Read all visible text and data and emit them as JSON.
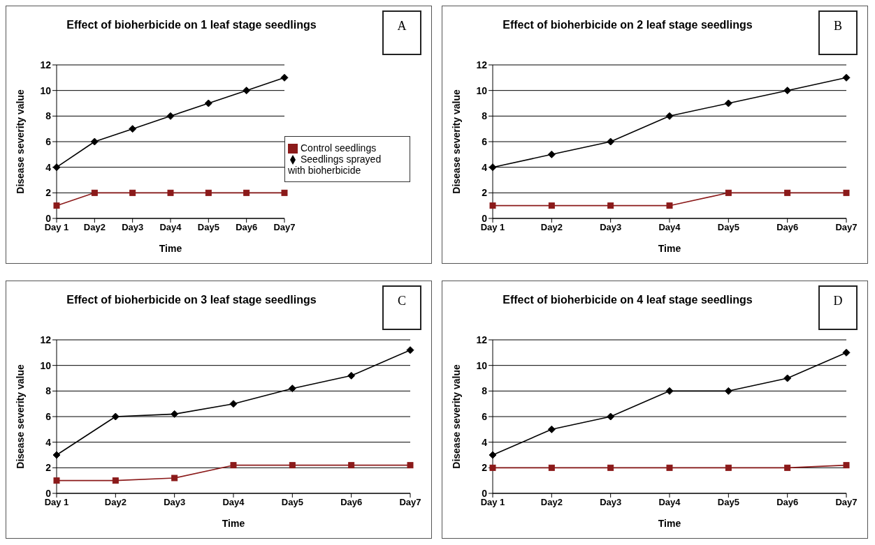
{
  "chart_data": [
    {
      "type": "line",
      "title": "Effect of bioherbicide on 1 leaf stage seedlings",
      "annotations": [
        "A"
      ],
      "xlabel": "Time",
      "ylabel": "Disease severity value",
      "categories": [
        "Day 1",
        "Day2",
        "Day3",
        "Day4",
        "Day5",
        "Day6",
        "Day7"
      ],
      "series": [
        {
          "name": "Seedlings sprayed with bioherbicide",
          "color": "#000000",
          "marker": "diamond",
          "values": [
            4,
            6,
            7,
            8,
            9,
            10,
            11
          ]
        },
        {
          "name": "Control seedlings",
          "color": "#8b1a1a",
          "marker": "square",
          "values": [
            1,
            2,
            2,
            2,
            2,
            2,
            2
          ]
        }
      ],
      "ylim": [
        0,
        12
      ],
      "yticks": [
        0,
        2,
        4,
        6,
        8,
        10,
        12
      ],
      "grid": "y",
      "legend": "right"
    },
    {
      "type": "line",
      "title": "Effect of bioherbicide on 2 leaf stage seedlings",
      "annotations": [
        "B"
      ],
      "xlabel": "Time",
      "ylabel": "Disease severity value",
      "categories": [
        "Day 1",
        "Day2",
        "Day3",
        "Day4",
        "Day5",
        "Day6",
        "Day7"
      ],
      "series": [
        {
          "color": "#000000",
          "marker": "diamond",
          "values": [
            4,
            5,
            6,
            8,
            9,
            10,
            11
          ]
        },
        {
          "color": "#8b1a1a",
          "marker": "square",
          "values": [
            1,
            1,
            1,
            1,
            2,
            2,
            2
          ]
        }
      ],
      "ylim": [
        0,
        12
      ],
      "yticks": [
        0,
        2,
        4,
        6,
        8,
        10,
        12
      ],
      "grid": "y"
    },
    {
      "type": "line",
      "title": "Effect of bioherbicide on 3 leaf stage seedlings",
      "annotations": [
        "C"
      ],
      "xlabel": "Time",
      "ylabel": "Disease severity value",
      "categories": [
        "Day 1",
        "Day2",
        "Day3",
        "Day4",
        "Day5",
        "Day6",
        "Day7"
      ],
      "series": [
        {
          "color": "#000000",
          "marker": "diamond",
          "values": [
            3,
            6,
            6.2,
            7,
            8.2,
            9.2,
            11.2
          ]
        },
        {
          "color": "#8b1a1a",
          "marker": "square",
          "values": [
            1,
            1,
            1.2,
            2.2,
            2.2,
            2.2,
            2.2
          ]
        }
      ],
      "ylim": [
        0,
        12
      ],
      "yticks": [
        0,
        2,
        4,
        6,
        8,
        10,
        12
      ],
      "grid": "y"
    },
    {
      "type": "line",
      "title": "Effect of bioherbicide on 4 leaf stage seedlings",
      "annotations": [
        "D"
      ],
      "xlabel": "Time",
      "ylabel": "Disease severity value",
      "categories": [
        "Day 1",
        "Day2",
        "Day3",
        "Day4",
        "Day5",
        "Day6",
        "Day7"
      ],
      "series": [
        {
          "color": "#000000",
          "marker": "diamond",
          "values": [
            3,
            5,
            6,
            8,
            8,
            9,
            11
          ]
        },
        {
          "color": "#8b1a1a",
          "marker": "square",
          "values": [
            2,
            2,
            2,
            2,
            2,
            2,
            2.2
          ]
        }
      ],
      "ylim": [
        0,
        12
      ],
      "yticks": [
        0,
        2,
        4,
        6,
        8,
        10,
        12
      ],
      "grid": "y"
    }
  ]
}
